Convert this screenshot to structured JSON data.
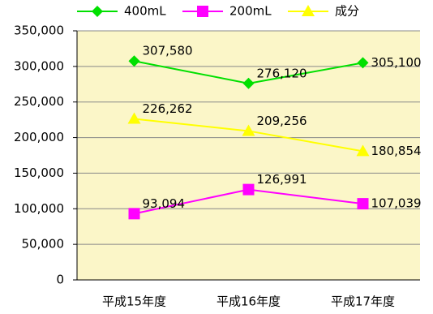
{
  "chart_data": {
    "type": "line",
    "categories": [
      "平成15年度",
      "平成16年度",
      "平成17年度"
    ],
    "series": [
      {
        "name": "400mL",
        "color": "#00e000",
        "marker": "diamond",
        "values": [
          307580,
          276120,
          305100
        ],
        "value_labels": [
          "307,580",
          "276,120",
          "305,100"
        ]
      },
      {
        "name": "200mL",
        "color": "#ff00ff",
        "marker": "square",
        "values": [
          93094,
          126991,
          107039
        ],
        "value_labels": [
          "93,094",
          "126,991",
          "107,039"
        ]
      },
      {
        "name": "成分",
        "color": "#ffff00",
        "marker": "triangle",
        "values": [
          226262,
          209256,
          180854
        ],
        "value_labels": [
          "226,262",
          "209,256",
          "180,854"
        ]
      }
    ],
    "ylim": [
      0,
      350000
    ],
    "yticks": [
      {
        "value": 0,
        "label": "0"
      },
      {
        "value": 50000,
        "label": "50,000"
      },
      {
        "value": 100000,
        "label": "100,000"
      },
      {
        "value": 150000,
        "label": "150,000"
      },
      {
        "value": 200000,
        "label": "200,000"
      },
      {
        "value": 250000,
        "label": "250,000"
      },
      {
        "value": 300000,
        "label": "300,000"
      },
      {
        "value": 350000,
        "label": "350,000"
      }
    ],
    "grid": true,
    "legend": "top",
    "plot_background": "#fbf6c8"
  }
}
